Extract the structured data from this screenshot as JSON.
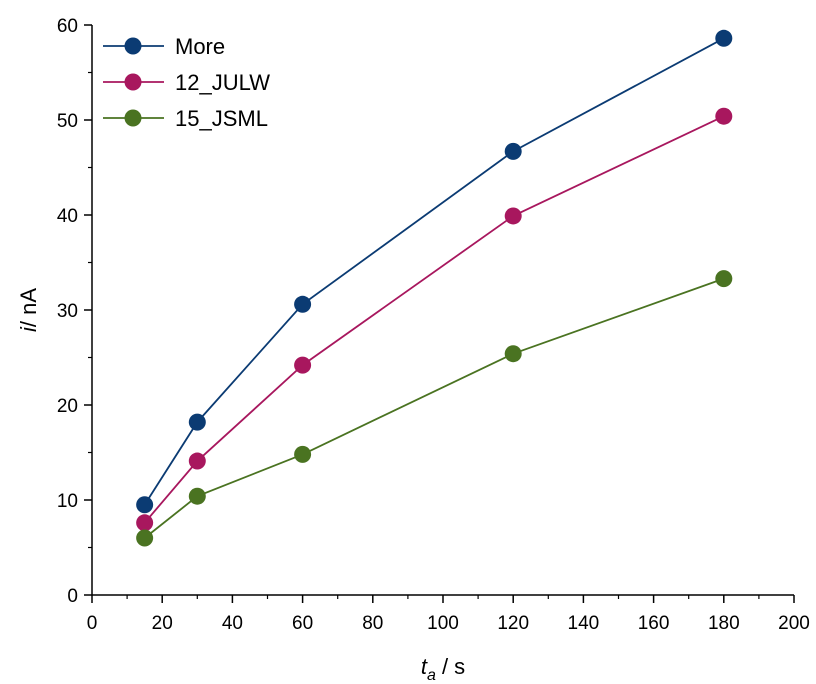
{
  "chart_data": {
    "type": "line",
    "title": "",
    "xlabel": {
      "symbol": "t",
      "subscript": "a",
      "unit": " / s"
    },
    "ylabel": {
      "symbol": "i",
      "unit": "/ nA"
    },
    "xlim": [
      0,
      200
    ],
    "ylim": [
      0,
      60
    ],
    "xticks": [
      0,
      20,
      40,
      60,
      80,
      100,
      120,
      140,
      160,
      180,
      200
    ],
    "yticks": [
      0,
      10,
      20,
      30,
      40,
      50,
      60
    ],
    "x": [
      15,
      30,
      60,
      120,
      180
    ],
    "series": [
      {
        "name": "More",
        "color": "#0b3b73",
        "values": [
          9.5,
          18.2,
          30.6,
          46.7,
          58.6
        ]
      },
      {
        "name": "12_JULW",
        "color": "#a8175e",
        "values": [
          7.6,
          14.1,
          24.2,
          39.9,
          50.4
        ]
      },
      {
        "name": "15_JSML",
        "color": "#4a7321",
        "values": [
          6.0,
          10.4,
          14.8,
          25.4,
          33.3
        ]
      }
    ],
    "legend_position": "top-left",
    "grid": false
  }
}
